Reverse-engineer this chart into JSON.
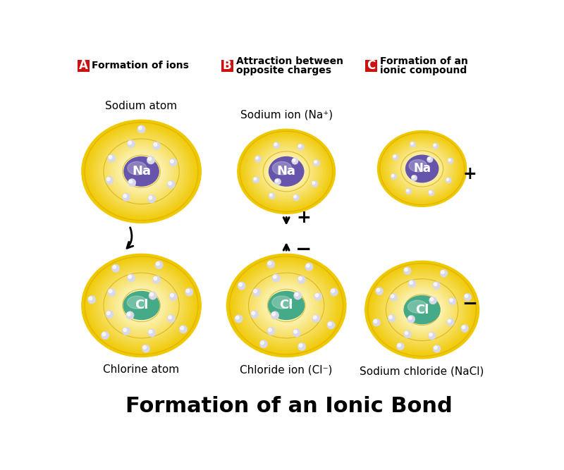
{
  "title": "Formation of an Ionic Bond",
  "title_fontsize": 22,
  "title_fontweight": "bold",
  "bg_color": "#ffffff",
  "label_A": "A",
  "label_B": "B",
  "label_C": "C",
  "header_A_line1": "Formation of ions",
  "header_A_line2": "",
  "header_B_line1": "Attraction between",
  "header_B_line2": "opposite charges",
  "header_C_line1": "Formation of an",
  "header_C_line2": "ionic compound",
  "sub_Na_atom": "Sodium atom",
  "sub_Na_ion": "Sodium ion (Na⁺)",
  "sub_Cl_atom": "Chlorine atom",
  "sub_Cl_ion": "Chloride ion (Cl⁻)",
  "sub_nacl": "Sodium chloride (NaCl)",
  "na_color_top": "#8878cc",
  "na_color_bot": "#6655aa",
  "cl_color_top": "#66ccaa",
  "cl_color_bot": "#44aa88",
  "electron_color": "#d8d8e8",
  "electron_shine": "#ffffff",
  "header_bg": "#cc1111",
  "header_fg": "#ffffff",
  "shell_yellow": "#f0c800",
  "shell_pale": "#fffde0"
}
